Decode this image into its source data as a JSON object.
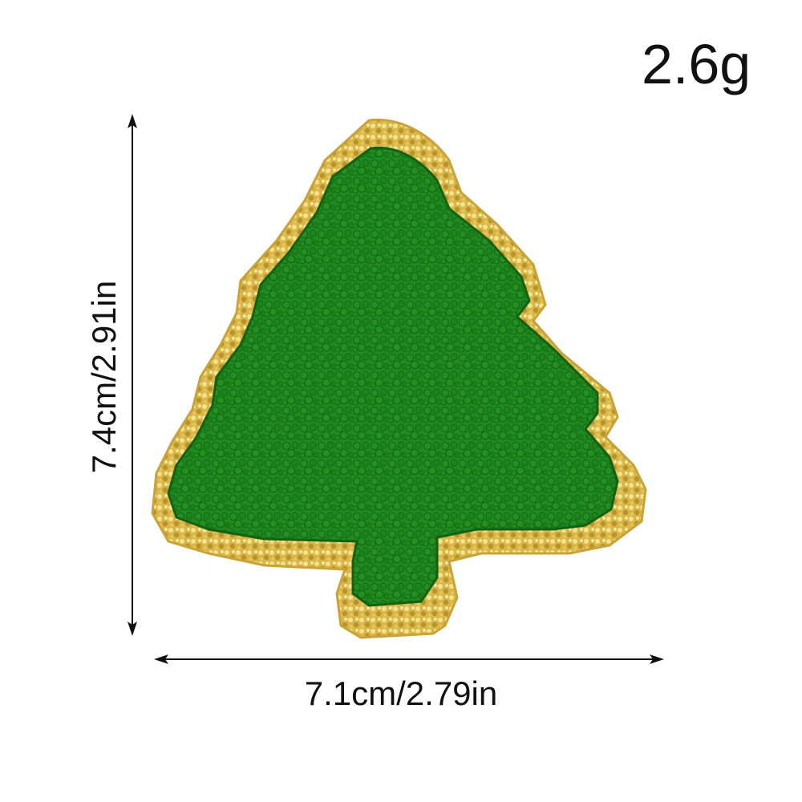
{
  "weight_label": "2.6g",
  "width_label": "7.1cm/2.79in",
  "height_label": "7.4cm/2.91in",
  "colors": {
    "tree_green": "#1f8a1f",
    "tree_green_dark": "#146b14",
    "glitter_gold": "#d9b84a",
    "glitter_light": "#f3e08a",
    "arrow": "#111111"
  },
  "icons": [
    "christmas-tree-patch-icon"
  ]
}
